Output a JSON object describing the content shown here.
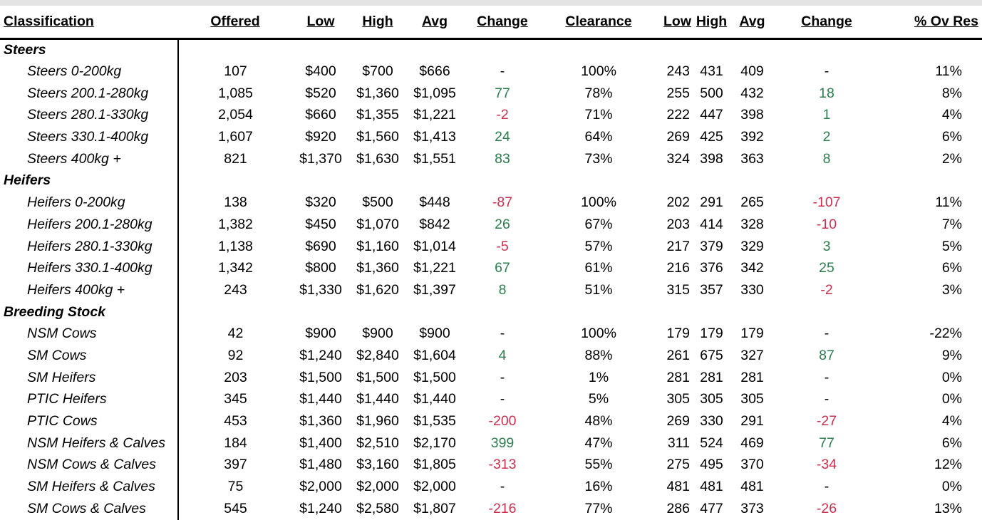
{
  "headers": {
    "classification": "Classification",
    "offered": "Offered",
    "low": "Low",
    "high": "High",
    "avg": "Avg",
    "change": "Change",
    "clearance": "Clearance",
    "low2": "Low",
    "high2": "High",
    "avg2": "Avg",
    "change2": "Change",
    "ov_res": "% Ov Res"
  },
  "colors": {
    "positive": "#2e7d4f",
    "negative": "#c8324f"
  },
  "rows": [
    {
      "type": "section",
      "label": "Steers"
    },
    {
      "type": "item",
      "label": "Steers 0-200kg",
      "offered": "107",
      "low": "$400",
      "high": "$700",
      "avg": "$666",
      "change": "-",
      "change_dir": "neu",
      "clearance": "100%",
      "low2": "243",
      "high2": "431",
      "avg2": "409",
      "change2": "-",
      "change2_dir": "neu",
      "ov_res": "11%"
    },
    {
      "type": "item",
      "label": "Steers 200.1-280kg",
      "offered": "1,085",
      "low": "$520",
      "high": "$1,360",
      "avg": "$1,095",
      "change": "77",
      "change_dir": "pos",
      "clearance": "78%",
      "low2": "255",
      "high2": "500",
      "avg2": "432",
      "change2": "18",
      "change2_dir": "pos",
      "ov_res": "8%"
    },
    {
      "type": "item",
      "label": "Steers 280.1-330kg",
      "offered": "2,054",
      "low": "$660",
      "high": "$1,355",
      "avg": "$1,221",
      "change": "-2",
      "change_dir": "neg",
      "clearance": "71%",
      "low2": "222",
      "high2": "447",
      "avg2": "398",
      "change2": "1",
      "change2_dir": "pos",
      "ov_res": "4%"
    },
    {
      "type": "item",
      "label": "Steers 330.1-400kg",
      "offered": "1,607",
      "low": "$920",
      "high": "$1,560",
      "avg": "$1,413",
      "change": "24",
      "change_dir": "pos",
      "clearance": "64%",
      "low2": "269",
      "high2": "425",
      "avg2": "392",
      "change2": "2",
      "change2_dir": "pos",
      "ov_res": "6%"
    },
    {
      "type": "item",
      "label": "Steers 400kg +",
      "offered": "821",
      "low": "$1,370",
      "high": "$1,630",
      "avg": "$1,551",
      "change": "83",
      "change_dir": "pos",
      "clearance": "73%",
      "low2": "324",
      "high2": "398",
      "avg2": "363",
      "change2": "8",
      "change2_dir": "pos",
      "ov_res": "2%"
    },
    {
      "type": "section",
      "label": "Heifers"
    },
    {
      "type": "item",
      "label": "Heifers 0-200kg",
      "offered": "138",
      "low": "$320",
      "high": "$500",
      "avg": "$448",
      "change": "-87",
      "change_dir": "neg",
      "clearance": "100%",
      "low2": "202",
      "high2": "291",
      "avg2": "265",
      "change2": "-107",
      "change2_dir": "neg",
      "ov_res": "11%"
    },
    {
      "type": "item",
      "label": "Heifers 200.1-280kg",
      "offered": "1,382",
      "low": "$450",
      "high": "$1,070",
      "avg": "$842",
      "change": "26",
      "change_dir": "pos",
      "clearance": "67%",
      "low2": "203",
      "high2": "414",
      "avg2": "328",
      "change2": "-10",
      "change2_dir": "neg",
      "ov_res": "7%"
    },
    {
      "type": "item",
      "label": "Heifers 280.1-330kg",
      "offered": "1,138",
      "low": "$690",
      "high": "$1,160",
      "avg": "$1,014",
      "change": "-5",
      "change_dir": "neg",
      "clearance": "57%",
      "low2": "217",
      "high2": "379",
      "avg2": "329",
      "change2": "3",
      "change2_dir": "pos",
      "ov_res": "5%"
    },
    {
      "type": "item",
      "label": "Heifers 330.1-400kg",
      "offered": "1,342",
      "low": "$800",
      "high": "$1,360",
      "avg": "$1,221",
      "change": "67",
      "change_dir": "pos",
      "clearance": "61%",
      "low2": "216",
      "high2": "376",
      "avg2": "342",
      "change2": "25",
      "change2_dir": "pos",
      "ov_res": "6%"
    },
    {
      "type": "item",
      "label": "Heifers 400kg +",
      "offered": "243",
      "low": "$1,330",
      "high": "$1,620",
      "avg": "$1,397",
      "change": "8",
      "change_dir": "pos",
      "clearance": "51%",
      "low2": "315",
      "high2": "357",
      "avg2": "330",
      "change2": "-2",
      "change2_dir": "neg",
      "ov_res": "3%"
    },
    {
      "type": "section",
      "label": "Breeding Stock"
    },
    {
      "type": "item",
      "label": "NSM Cows",
      "offered": "42",
      "low": "$900",
      "high": "$900",
      "avg": "$900",
      "change": "-",
      "change_dir": "neu",
      "clearance": "100%",
      "low2": "179",
      "high2": "179",
      "avg2": "179",
      "change2": "-",
      "change2_dir": "neu",
      "ov_res": "-22%"
    },
    {
      "type": "item",
      "label": "SM Cows",
      "offered": "92",
      "low": "$1,240",
      "high": "$2,840",
      "avg": "$1,604",
      "change": "4",
      "change_dir": "pos",
      "clearance": "88%",
      "low2": "261",
      "high2": "675",
      "avg2": "327",
      "change2": "87",
      "change2_dir": "pos",
      "ov_res": "9%"
    },
    {
      "type": "item",
      "label": "SM Heifers",
      "offered": "203",
      "low": "$1,500",
      "high": "$1,500",
      "avg": "$1,500",
      "change": "-",
      "change_dir": "neu",
      "clearance": "1%",
      "low2": "281",
      "high2": "281",
      "avg2": "281",
      "change2": "-",
      "change2_dir": "neu",
      "ov_res": "0%"
    },
    {
      "type": "item",
      "label": "PTIC Heifers",
      "offered": "345",
      "low": "$1,440",
      "high": "$1,440",
      "avg": "$1,440",
      "change": "-",
      "change_dir": "neu",
      "clearance": "5%",
      "low2": "305",
      "high2": "305",
      "avg2": "305",
      "change2": "-",
      "change2_dir": "neu",
      "ov_res": "0%"
    },
    {
      "type": "item",
      "label": "PTIC Cows",
      "offered": "453",
      "low": "$1,360",
      "high": "$1,960",
      "avg": "$1,535",
      "change": "-200",
      "change_dir": "neg",
      "clearance": "48%",
      "low2": "269",
      "high2": "330",
      "avg2": "291",
      "change2": "-27",
      "change2_dir": "neg",
      "ov_res": "4%"
    },
    {
      "type": "item",
      "label": "NSM Heifers & Calves",
      "offered": "184",
      "low": "$1,400",
      "high": "$2,510",
      "avg": "$2,170",
      "change": "399",
      "change_dir": "pos",
      "clearance": "47%",
      "low2": "311",
      "high2": "524",
      "avg2": "469",
      "change2": "77",
      "change2_dir": "pos",
      "ov_res": "6%"
    },
    {
      "type": "item",
      "label": "NSM Cows & Calves",
      "offered": "397",
      "low": "$1,480",
      "high": "$3,160",
      "avg": "$1,805",
      "change": "-313",
      "change_dir": "neg",
      "clearance": "55%",
      "low2": "275",
      "high2": "495",
      "avg2": "370",
      "change2": "-34",
      "change2_dir": "neg",
      "ov_res": "12%"
    },
    {
      "type": "item",
      "label": "SM Heifers & Calves",
      "offered": "75",
      "low": "$2,000",
      "high": "$2,000",
      "avg": "$2,000",
      "change": "-",
      "change_dir": "neu",
      "clearance": "16%",
      "low2": "481",
      "high2": "481",
      "avg2": "481",
      "change2": "-",
      "change2_dir": "neu",
      "ov_res": "0%"
    },
    {
      "type": "item",
      "label": "SM Cows & Calves",
      "offered": "545",
      "low": "$1,240",
      "high": "$2,580",
      "avg": "$1,807",
      "change": "-216",
      "change_dir": "neg",
      "clearance": "77%",
      "low2": "286",
      "high2": "477",
      "avg2": "373",
      "change2": "-26",
      "change2_dir": "neg",
      "ov_res": "13%"
    }
  ]
}
